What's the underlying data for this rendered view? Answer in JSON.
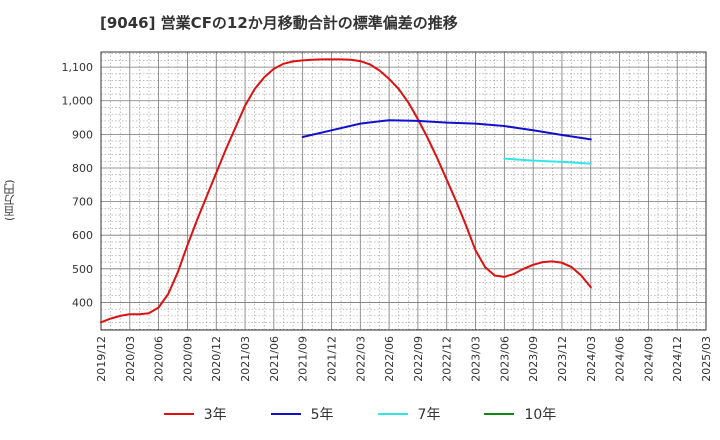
{
  "chart_data": {
    "type": "line",
    "title": "[9046]  営業CFの12か月移動合計の標準偏差の推移",
    "ylabel": "(百万円)",
    "xlabel": "",
    "ylim": [
      318,
      1145
    ],
    "y_ticks": [
      400,
      500,
      600,
      700,
      800,
      900,
      1000,
      1100
    ],
    "y_tick_labels": [
      "400",
      "500",
      "600",
      "700",
      "800",
      "900",
      "1,000",
      "1,100"
    ],
    "x_ticks": [
      "2019/12",
      "2020/03",
      "2020/06",
      "2020/09",
      "2020/12",
      "2021/03",
      "2021/06",
      "2021/09",
      "2021/12",
      "2022/03",
      "2022/06",
      "2022/09",
      "2022/12",
      "2023/03",
      "2023/06",
      "2023/09",
      "2023/12",
      "2024/03",
      "2024/06",
      "2024/09",
      "2024/12",
      "2025/03"
    ],
    "grid": true,
    "legend_position": "bottom",
    "series": [
      {
        "name": "3年",
        "color": "#dd1111",
        "x": [
          "2019/12",
          "2020/01",
          "2020/02",
          "2020/03",
          "2020/04",
          "2020/05",
          "2020/06",
          "2020/07",
          "2020/08",
          "2020/09",
          "2020/10",
          "2020/11",
          "2020/12",
          "2021/01",
          "2021/02",
          "2021/03",
          "2021/04",
          "2021/05",
          "2021/06",
          "2021/07",
          "2021/08",
          "2021/09",
          "2021/10",
          "2021/11",
          "2021/12",
          "2022/01",
          "2022/02",
          "2022/03",
          "2022/04",
          "2022/05",
          "2022/06",
          "2022/07",
          "2022/08",
          "2022/09",
          "2022/10",
          "2022/11",
          "2022/12",
          "2023/01",
          "2023/02",
          "2023/03",
          "2023/04",
          "2023/05",
          "2023/06",
          "2023/07",
          "2023/08",
          "2023/09",
          "2023/10",
          "2023/11",
          "2023/12",
          "2024/01",
          "2024/02",
          "2024/03"
        ],
        "values": [
          341,
          352,
          360,
          365,
          365,
          368,
          385,
          425,
          490,
          570,
          645,
          715,
          785,
          855,
          920,
          985,
          1035,
          1070,
          1095,
          1110,
          1117,
          1120,
          1122,
          1123,
          1123,
          1123,
          1122,
          1118,
          1108,
          1090,
          1065,
          1035,
          995,
          945,
          890,
          830,
          765,
          700,
          630,
          555,
          505,
          480,
          476,
          485,
          500,
          512,
          520,
          522,
          518,
          505,
          480,
          445
        ]
      },
      {
        "name": "5年",
        "color": "#1111cc",
        "x": [
          "2021/09",
          "2021/12",
          "2022/03",
          "2022/06",
          "2022/09",
          "2022/12",
          "2023/03",
          "2023/06",
          "2023/09",
          "2023/12",
          "2024/03"
        ],
        "values": [
          892,
          912,
          932,
          942,
          940,
          935,
          932,
          925,
          912,
          898,
          885
        ]
      },
      {
        "name": "7年",
        "color": "#33e6e6",
        "x": [
          "2023/06",
          "2023/09",
          "2023/12",
          "2024/03"
        ],
        "values": [
          828,
          822,
          818,
          813
        ]
      },
      {
        "name": "10年",
        "color": "#118811",
        "x": [],
        "values": []
      }
    ]
  }
}
